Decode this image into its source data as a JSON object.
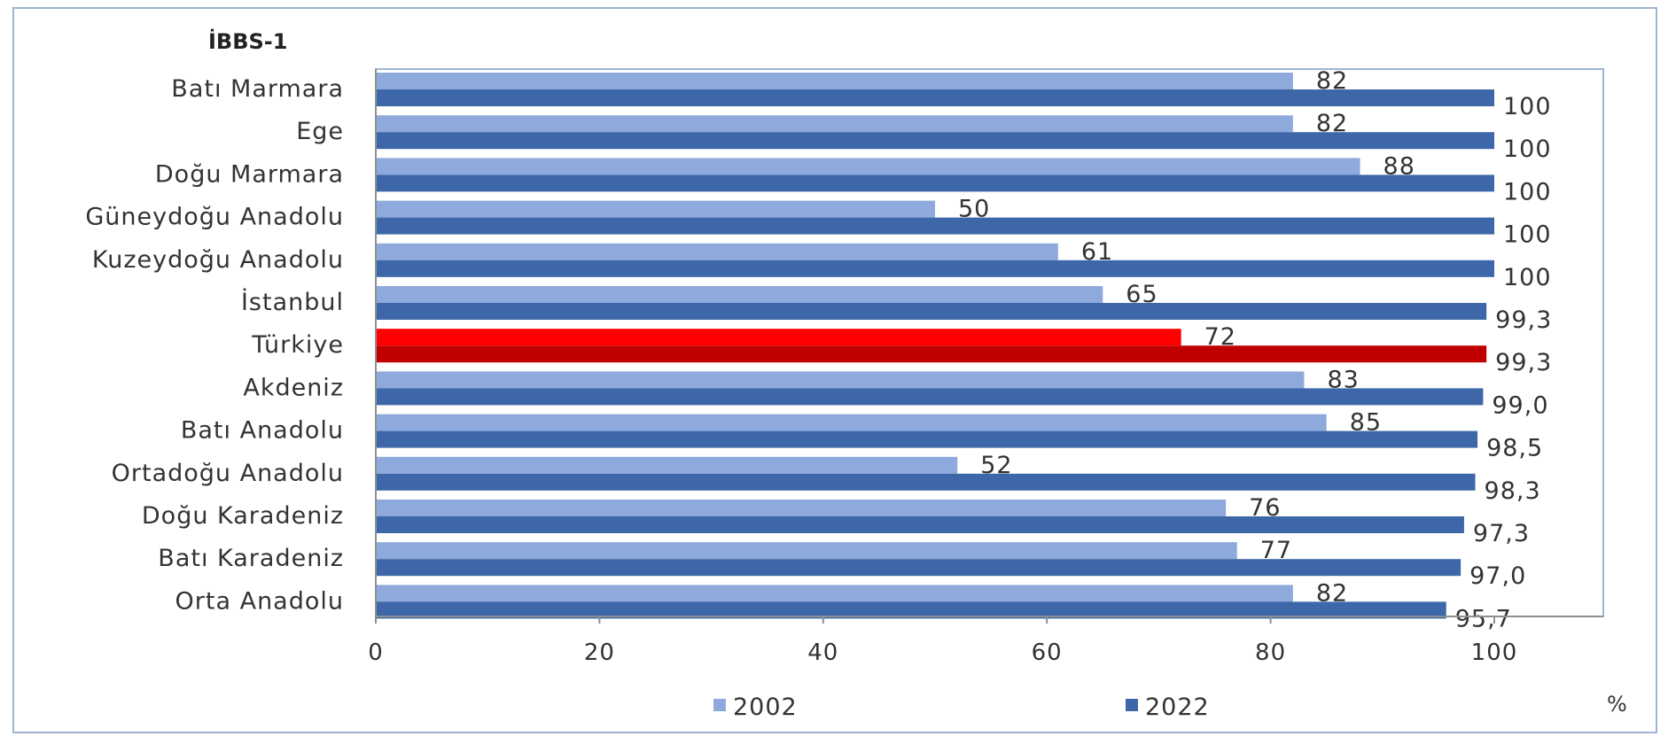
{
  "chart_data": {
    "type": "bar",
    "orientation": "horizontal",
    "title": "İBBS-1",
    "unit_label": "%",
    "categories": [
      "Batı Marmara",
      "Ege",
      "Doğu Marmara",
      "Güneydoğu Anadolu",
      "Kuzeydoğu Anadolu",
      "İstanbul",
      "Türkiye",
      "Akdeniz",
      "Batı Anadolu",
      "Ortadoğu Anadolu",
      "Doğu Karadeniz",
      "Batı Karadeniz",
      "Orta Anadolu"
    ],
    "series": [
      {
        "name": "2002",
        "color": "#8EA9DB",
        "values": [
          82,
          82,
          88,
          50,
          61,
          65,
          72,
          83,
          85,
          52,
          76,
          77,
          82
        ],
        "value_labels": [
          "82",
          "82",
          "88",
          "50",
          "61",
          "65",
          "72",
          "83",
          "85",
          "52",
          "76",
          "77",
          "82"
        ]
      },
      {
        "name": "2022",
        "color": "#3D67A8",
        "values": [
          100,
          100,
          100,
          100,
          100,
          99.3,
          99.3,
          99.0,
          98.5,
          98.3,
          97.3,
          97.0,
          95.7
        ],
        "value_labels": [
          "100",
          "100",
          "100",
          "100",
          "100",
          "99,3",
          "99,3",
          "99,0",
          "98,5",
          "98,3",
          "97,3",
          "97,0",
          "95,7"
        ]
      }
    ],
    "highlight": {
      "category": "Türkiye",
      "colors": {
        "2002": "#FF0000",
        "2022": "#C00000"
      }
    },
    "xlim": [
      0,
      100
    ],
    "x_ticks": [
      0,
      20,
      40,
      60,
      80,
      100
    ],
    "x_tick_labels": [
      "0",
      "20",
      "40",
      "60",
      "80",
      "100"
    ],
    "gridlines": false,
    "legend_position": "bottom"
  }
}
